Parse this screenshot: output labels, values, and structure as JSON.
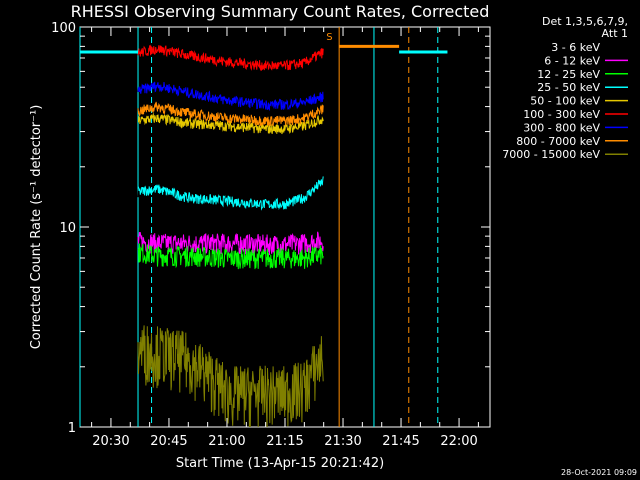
{
  "chart_data": {
    "type": "line",
    "title": "RHESSI Observing Summary Count Rates, Corrected",
    "xlabel": "Start Time (13-Apr-15 20:21:42)",
    "ylabel": "Corrected Count Rate (s⁻¹ detector⁻¹)",
    "y_scale": "log",
    "ylim": [
      1,
      100
    ],
    "y_ticks": [
      "1",
      "10",
      "100"
    ],
    "x_ticks": [
      "20:30",
      "20:45",
      "21:00",
      "21:15",
      "21:30",
      "21:45",
      "22:00"
    ],
    "x_tick_minutes": [
      30,
      45,
      60,
      75,
      90,
      105,
      120
    ],
    "xlim_minutes": [
      22,
      128
    ],
    "legend_header": [
      "Det 1,3,5,6,7,9,",
      "Att 1"
    ],
    "legend_placement": "right",
    "series": [
      {
        "name": "3 - 6 keV",
        "color": "#000000",
        "t": [
          37,
          42,
          50,
          60,
          70,
          75,
          80,
          85
        ],
        "values": [
          15,
          14.5,
          15,
          15,
          15,
          14.5,
          15,
          16
        ]
      },
      {
        "name": "6 - 12 keV",
        "color": "#ff00ff",
        "t": [
          37,
          42,
          50,
          60,
          70,
          75,
          80,
          85
        ],
        "values": [
          8.5,
          8.3,
          8.3,
          8.3,
          8.2,
          8.2,
          8.3,
          8.6
        ]
      },
      {
        "name": "12 - 25 keV",
        "color": "#00ff00",
        "t": [
          37,
          42,
          50,
          60,
          70,
          75,
          80,
          85
        ],
        "values": [
          7.5,
          7.2,
          7.2,
          7.0,
          7.0,
          7.0,
          7.0,
          7.3
        ]
      },
      {
        "name": "25 - 50 keV",
        "color": "#00ffff",
        "t": [
          37,
          42,
          50,
          60,
          70,
          75,
          80,
          85
        ],
        "values": [
          15,
          15.5,
          14,
          13.5,
          13,
          13,
          14,
          17
        ]
      },
      {
        "name": "50 - 100 keV",
        "color": "#e6c800",
        "t": [
          37,
          42,
          50,
          60,
          70,
          75,
          80,
          85
        ],
        "values": [
          34,
          35,
          33,
          32,
          31,
          31,
          32,
          35
        ]
      },
      {
        "name": "100 - 300 keV",
        "color": "#ff0000",
        "t": [
          37,
          42,
          50,
          60,
          70,
          75,
          80,
          85
        ],
        "values": [
          74,
          78,
          72,
          67,
          64,
          64,
          66,
          75
        ]
      },
      {
        "name": "300 - 800 keV",
        "color": "#0000ff",
        "t": [
          37,
          42,
          50,
          60,
          70,
          75,
          80,
          85
        ],
        "values": [
          48,
          51,
          47,
          43,
          41,
          41,
          42,
          45
        ]
      },
      {
        "name": "800 - 7000 keV",
        "color": "#ff8c00",
        "t": [
          37,
          42,
          50,
          60,
          70,
          75,
          80,
          85
        ],
        "values": [
          38,
          40,
          37,
          35,
          34,
          34,
          35,
          39
        ]
      },
      {
        "name": "7000 - 15000 keV",
        "color": "#808000",
        "t": [
          37,
          42,
          50,
          60,
          70,
          75,
          80,
          85
        ],
        "values": [
          2.5,
          2.4,
          2.2,
          1.5,
          1.5,
          1.5,
          1.6,
          2.3
        ]
      }
    ],
    "flag_bars": [
      {
        "color": "#00ffff",
        "y": 75,
        "segments": [
          [
            22,
            37
          ],
          [
            104.5,
            117
          ]
        ]
      },
      {
        "color": "#ff8c00",
        "y": 80,
        "segments": [
          [
            89,
            104.5
          ]
        ]
      }
    ],
    "vlines": [
      {
        "t": 22,
        "color": "#00ffff",
        "style": "solid"
      },
      {
        "t": 37,
        "color": "#00ffff",
        "style": "solid"
      },
      {
        "t": 40.5,
        "color": "#00ffff",
        "style": "dashed"
      },
      {
        "t": 89,
        "color": "#ff8c00",
        "style": "solid"
      },
      {
        "t": 98,
        "color": "#00ffff",
        "style": "solid"
      },
      {
        "t": 107,
        "color": "#ff8c00",
        "style": "dashed"
      },
      {
        "t": 114.5,
        "color": "#00ffff",
        "style": "dashed"
      }
    ],
    "annotation": {
      "text": "S",
      "t": 86.5,
      "value": 86,
      "color": "#ff8c00"
    }
  },
  "timestamp": "28-Oct-2021 09:09"
}
